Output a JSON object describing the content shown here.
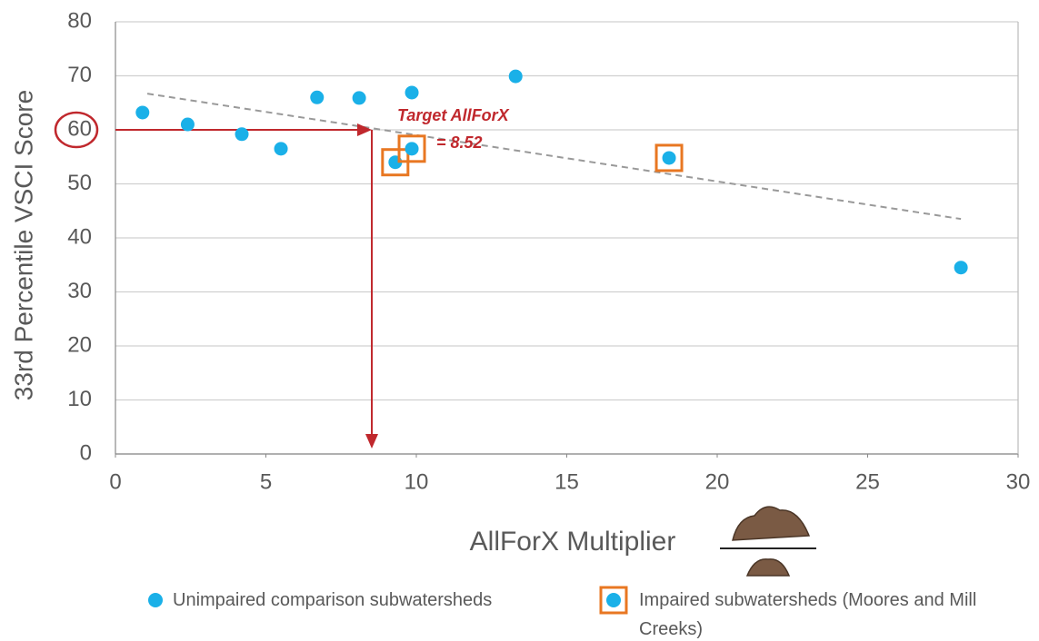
{
  "chart_data": {
    "type": "scatter",
    "xlabel": "AllForX Multiplier",
    "ylabel": "33rd Percentile VSCI Score",
    "xlim": [
      0,
      30
    ],
    "xticks": [
      0,
      5,
      10,
      15,
      20,
      25,
      30
    ],
    "ylim": [
      0,
      80
    ],
    "yticks": [
      0,
      10,
      20,
      30,
      40,
      50,
      60,
      70,
      80
    ],
    "grid": true,
    "series": [
      {
        "name": "Unimpaired comparison subwatersheds",
        "color": "#1ab0e8",
        "marker": "circle",
        "x": [
          0.9,
          2.4,
          4.2,
          5.5,
          6.7,
          8.1,
          9.85,
          13.3,
          28.1
        ],
        "y": [
          63.2,
          61,
          59.2,
          56.5,
          66,
          65.9,
          66.9,
          69.9,
          34.5
        ]
      },
      {
        "name": "Impaired subwatersheds (Moores and Mill Creeks)",
        "color": "#1ab0e8",
        "box_color": "#e87722",
        "marker": "boxed-circle",
        "x": [
          9.3,
          9.85,
          18.4
        ],
        "y": [
          54,
          56.5,
          54.8
        ]
      }
    ],
    "trendline": {
      "color": "#999999",
      "x": [
        1.06,
        28.1
      ],
      "y": [
        66.7,
        43.5
      ]
    },
    "annotation": {
      "text": "Target AllForX",
      "value_text": "= 8.52",
      "x": 8.52,
      "y": 60,
      "color": "#c0282d"
    }
  }
}
